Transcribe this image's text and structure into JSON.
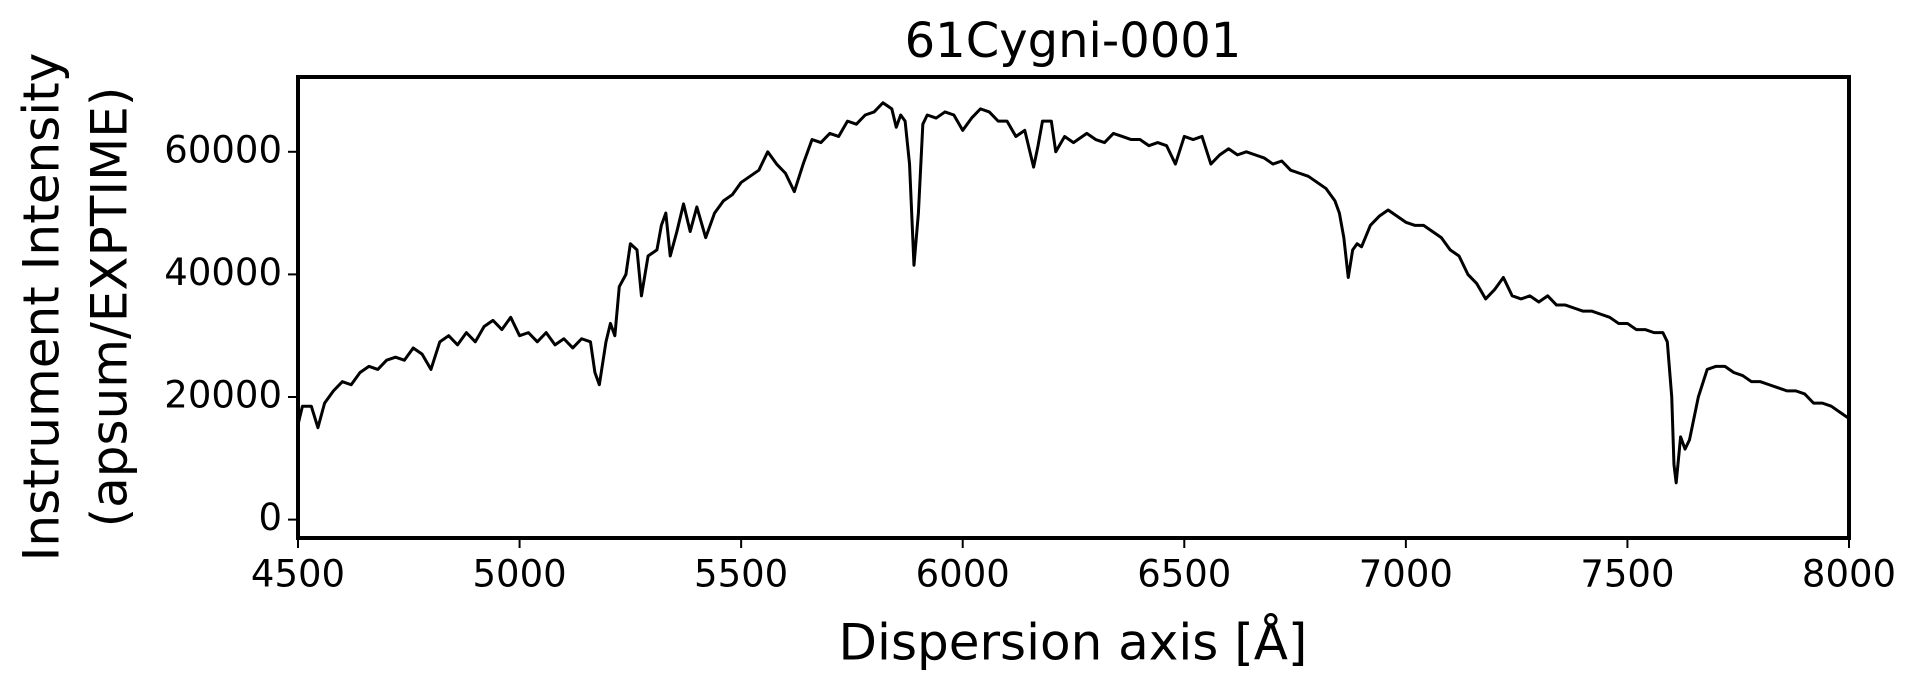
{
  "chart_data": {
    "type": "line",
    "title": "61Cygni-0001",
    "xlabel": "Dispersion axis [Å]",
    "ylabel": [
      "Instrument Intensity",
      "(apsum/EXPTIME)"
    ],
    "color": "#000000",
    "xlim": [
      4500,
      8000
    ],
    "xticks": [
      4500,
      5000,
      5500,
      6000,
      6500,
      7000,
      7500,
      8000
    ],
    "ylim": [
      -3000,
      72200
    ],
    "yticks": [
      0,
      20000,
      40000,
      60000
    ],
    "grid": false,
    "x": [
      4500,
      4510,
      4530,
      4545,
      4560,
      4580,
      4600,
      4620,
      4640,
      4660,
      4680,
      4700,
      4720,
      4740,
      4760,
      4780,
      4800,
      4820,
      4840,
      4860,
      4880,
      4900,
      4920,
      4940,
      4960,
      4980,
      5000,
      5020,
      5040,
      5060,
      5080,
      5100,
      5120,
      5140,
      5160,
      5170,
      5180,
      5195,
      5205,
      5215,
      5225,
      5240,
      5250,
      5265,
      5275,
      5290,
      5310,
      5320,
      5330,
      5340,
      5355,
      5370,
      5385,
      5400,
      5420,
      5440,
      5460,
      5480,
      5500,
      5520,
      5540,
      5560,
      5580,
      5600,
      5620,
      5640,
      5660,
      5680,
      5700,
      5720,
      5740,
      5760,
      5780,
      5800,
      5820,
      5840,
      5850,
      5860,
      5870,
      5880,
      5890,
      5900,
      5910,
      5920,
      5940,
      5960,
      5980,
      6000,
      6020,
      6040,
      6060,
      6080,
      6100,
      6120,
      6140,
      6160,
      6170,
      6180,
      6200,
      6210,
      6230,
      6250,
      6280,
      6300,
      6320,
      6340,
      6360,
      6380,
      6400,
      6420,
      6440,
      6460,
      6480,
      6500,
      6520,
      6540,
      6560,
      6580,
      6600,
      6620,
      6640,
      6660,
      6680,
      6700,
      6720,
      6740,
      6760,
      6780,
      6800,
      6820,
      6840,
      6850,
      6860,
      6870,
      6880,
      6890,
      6900,
      6920,
      6940,
      6960,
      6980,
      7000,
      7020,
      7040,
      7060,
      7080,
      7100,
      7120,
      7140,
      7160,
      7180,
      7200,
      7220,
      7240,
      7260,
      7280,
      7300,
      7320,
      7340,
      7360,
      7380,
      7400,
      7420,
      7440,
      7460,
      7480,
      7500,
      7520,
      7540,
      7560,
      7580,
      7590,
      7600,
      7605,
      7610,
      7620,
      7630,
      7640,
      7660,
      7680,
      7700,
      7720,
      7740,
      7760,
      7780,
      7800,
      7820,
      7840,
      7860,
      7880,
      7900,
      7920,
      7940,
      7960,
      7980,
      8000
    ],
    "values": [
      15500,
      18500,
      18500,
      15000,
      19000,
      21000,
      22500,
      22000,
      24000,
      25000,
      24500,
      26000,
      26500,
      26000,
      28000,
      27000,
      24500,
      29000,
      30000,
      28500,
      30500,
      29000,
      31500,
      32500,
      31000,
      33000,
      30000,
      30500,
      29000,
      30500,
      28500,
      29500,
      28000,
      29500,
      29000,
      24000,
      22000,
      29000,
      32000,
      30000,
      38000,
      40000,
      45000,
      44000,
      36500,
      43000,
      44000,
      48000,
      50000,
      43000,
      47000,
      51500,
      47000,
      51000,
      46000,
      50000,
      52000,
      53000,
      55000,
      56000,
      57000,
      60000,
      58000,
      56500,
      53500,
      58000,
      62000,
      61500,
      63000,
      62500,
      65000,
      64500,
      66000,
      66500,
      68000,
      67000,
      64000,
      66000,
      65000,
      58000,
      41500,
      50000,
      64500,
      66000,
      65500,
      66500,
      66000,
      63500,
      65500,
      67000,
      66500,
      65000,
      65000,
      62500,
      63500,
      57500,
      61000,
      65000,
      65000,
      60000,
      62500,
      61500,
      63000,
      62000,
      61500,
      63000,
      62500,
      62000,
      62000,
      61000,
      61500,
      61000,
      58000,
      62500,
      62000,
      62500,
      58000,
      59500,
      60500,
      59500,
      60000,
      59500,
      59000,
      58000,
      58500,
      57000,
      56500,
      56000,
      55000,
      54000,
      52000,
      50000,
      46000,
      39500,
      44000,
      45000,
      44500,
      48000,
      49500,
      50500,
      49500,
      48500,
      48000,
      48000,
      47000,
      46000,
      44000,
      43000,
      40000,
      38500,
      36000,
      37500,
      39500,
      36500,
      36000,
      36500,
      35500,
      36500,
      35000,
      35000,
      34500,
      34000,
      34000,
      33500,
      33000,
      32000,
      32000,
      31000,
      31000,
      30500,
      30500,
      29000,
      20000,
      9000,
      6000,
      13500,
      11500,
      13000,
      20000,
      24500,
      25000,
      25000,
      24000,
      23500,
      22500,
      22500,
      22000,
      21500,
      21000,
      21000,
      20500,
      19000,
      19000,
      18500,
      17500,
      16500
    ]
  }
}
